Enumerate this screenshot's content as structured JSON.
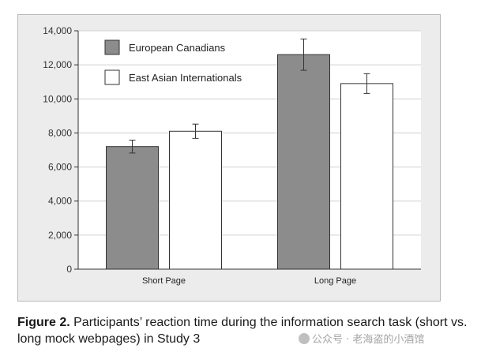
{
  "chart_data": {
    "type": "bar",
    "categories": [
      "Short Page",
      "Long Page"
    ],
    "series": [
      {
        "name": "European Canadians",
        "values": [
          7200,
          12600
        ],
        "errors": [
          380,
          920
        ],
        "color": "#8c8c8c"
      },
      {
        "name": "East Asian Internationals",
        "values": [
          8100,
          10900
        ],
        "errors": [
          420,
          580
        ],
        "color": "#ffffff"
      }
    ],
    "ylim": [
      0,
      14000
    ],
    "yticks": [
      0,
      2000,
      4000,
      6000,
      8000,
      10000,
      12000,
      14000
    ],
    "ytick_labels": [
      "0",
      "2,000",
      "4,000",
      "6,000",
      "8,000",
      "10,000",
      "12,000",
      "14,000"
    ],
    "grid": true,
    "legend_position": "top-left",
    "title": "",
    "xlabel": "",
    "ylabel": ""
  },
  "caption": {
    "label": "Figure 2.",
    "text": " Participants’ reaction time during the information search task (short vs. long mock webpages) in Study 3"
  },
  "watermark": {
    "text": "公众号 · 老海盗的小酒馆",
    "icon": "wechat-logo-icon"
  }
}
